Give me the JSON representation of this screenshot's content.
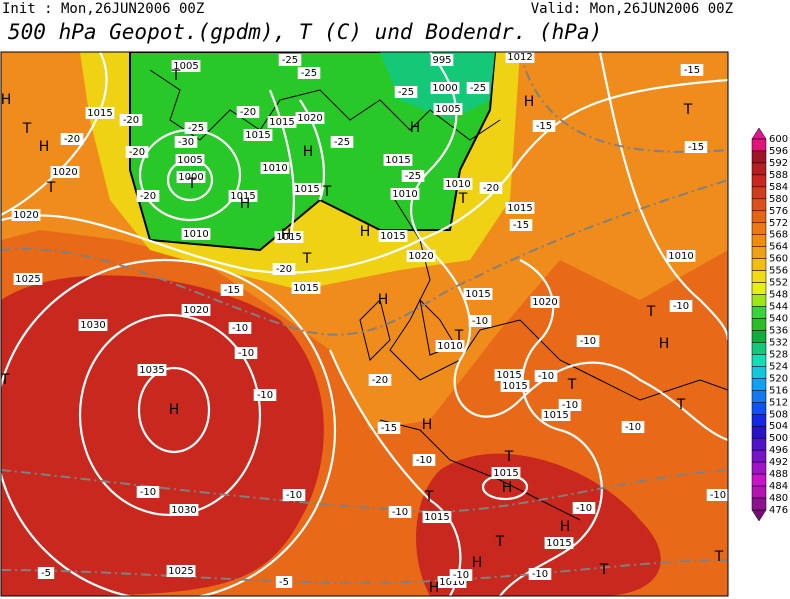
{
  "header": {
    "init": "Init : Mon,26JUN2006 00Z",
    "valid": "Valid: Mon,26JUN2006 00Z",
    "title": "500 hPa Geopot.(gpdm), T (C) und Bodendr. (hPa)"
  },
  "legend": {
    "ticks": [
      600,
      596,
      592,
      588,
      584,
      580,
      576,
      572,
      568,
      564,
      560,
      556,
      552,
      548,
      544,
      540,
      536,
      532,
      528,
      524,
      520,
      516,
      512,
      508,
      504,
      500,
      496,
      492,
      488,
      484,
      480,
      476
    ],
    "colors": [
      "#e0147a",
      "#a01428",
      "#b41e1e",
      "#c8281e",
      "#d23c1e",
      "#dc501e",
      "#e66414",
      "#f07814",
      "#f08c14",
      "#f0a014",
      "#f0be14",
      "#f0dc14",
      "#e6f014",
      "#a0e614",
      "#3cd23c",
      "#28be28",
      "#14aa3c",
      "#14c878",
      "#14dcb4",
      "#14c8dc",
      "#14a0f0",
      "#1478f0",
      "#1450f0",
      "#1428e6",
      "#2814c8",
      "#5014c8",
      "#7814c8",
      "#a014c8",
      "#c814c8",
      "#b414b4",
      "#8c148c"
    ],
    "top_color": "#e0148c",
    "bottom_color": "#780a78"
  },
  "map": {
    "isobar_labels": [
      "1005",
      "1015",
      "1020",
      "1020",
      "1025",
      "1030",
      "1035",
      "1030",
      "1025",
      "1005",
      "1000",
      "1015",
      "1015",
      "1020",
      "1010",
      "1015",
      "1015",
      "1010",
      "1015",
      "995",
      "1000",
      "1005",
      "1015",
      "1010",
      "1010",
      "1015",
      "1020",
      "1015",
      "1015",
      "1020",
      "1015",
      "1020",
      "1010",
      "1015",
      "1015",
      "1015",
      "1010",
      "1015",
      "1015",
      "1015",
      "1010",
      "1012"
    ],
    "temp_labels": [
      "-25",
      "-25",
      "-20",
      "-25",
      "-30",
      "-20",
      "-20",
      "-20",
      "-25",
      "-25",
      "-25",
      "-25",
      "-20",
      "-15",
      "-20",
      "-15",
      "-10",
      "-10",
      "-15",
      "-15",
      "-15",
      "-20",
      "-10",
      "-10",
      "-10",
      "-10",
      "-10",
      "-20",
      "-15",
      "-10",
      "-10",
      "-10",
      "-10",
      "-10",
      "-10",
      "-10",
      "-10",
      "-5",
      "-5",
      "-10",
      "-10"
    ],
    "markers": [
      "H",
      "T",
      "H",
      "T",
      "H",
      "T",
      "H",
      "H",
      "T",
      "T",
      "H",
      "T",
      "H",
      "H",
      "H",
      "T",
      "T",
      "H",
      "T",
      "H",
      "T",
      "H",
      "T",
      "T",
      "H",
      "T",
      "T",
      "H",
      "T",
      "H",
      "T",
      "T",
      "H",
      "T"
    ]
  }
}
